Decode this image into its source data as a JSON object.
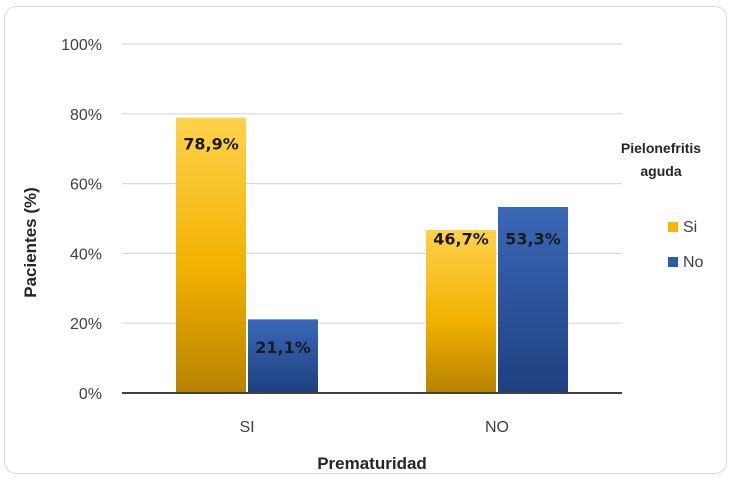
{
  "chart_data": {
    "type": "bar",
    "categories": [
      "SI",
      "NO"
    ],
    "series": [
      {
        "name": "Si",
        "values": [
          78.9,
          46.7
        ],
        "labels": [
          "78,9%",
          "46,7%"
        ],
        "color": "#f5b800"
      },
      {
        "name": "No",
        "values": [
          21.1,
          53.3
        ],
        "labels": [
          "21,1%",
          "53,3%"
        ],
        "color": "#2f5aa8"
      }
    ],
    "xlabel": "Prematuridad",
    "ylabel": "Pacientes (%)",
    "ylim": [
      0,
      100
    ],
    "yticks": [
      0,
      20,
      40,
      60,
      80,
      100
    ],
    "ytick_labels": [
      "0%",
      "20%",
      "40%",
      "60%",
      "80%",
      "100%"
    ],
    "legend": {
      "title": "Pielonefritis aguda",
      "title_lines": [
        "Pielonefritis",
        "aguda"
      ],
      "placement": "right"
    },
    "grid": true
  }
}
